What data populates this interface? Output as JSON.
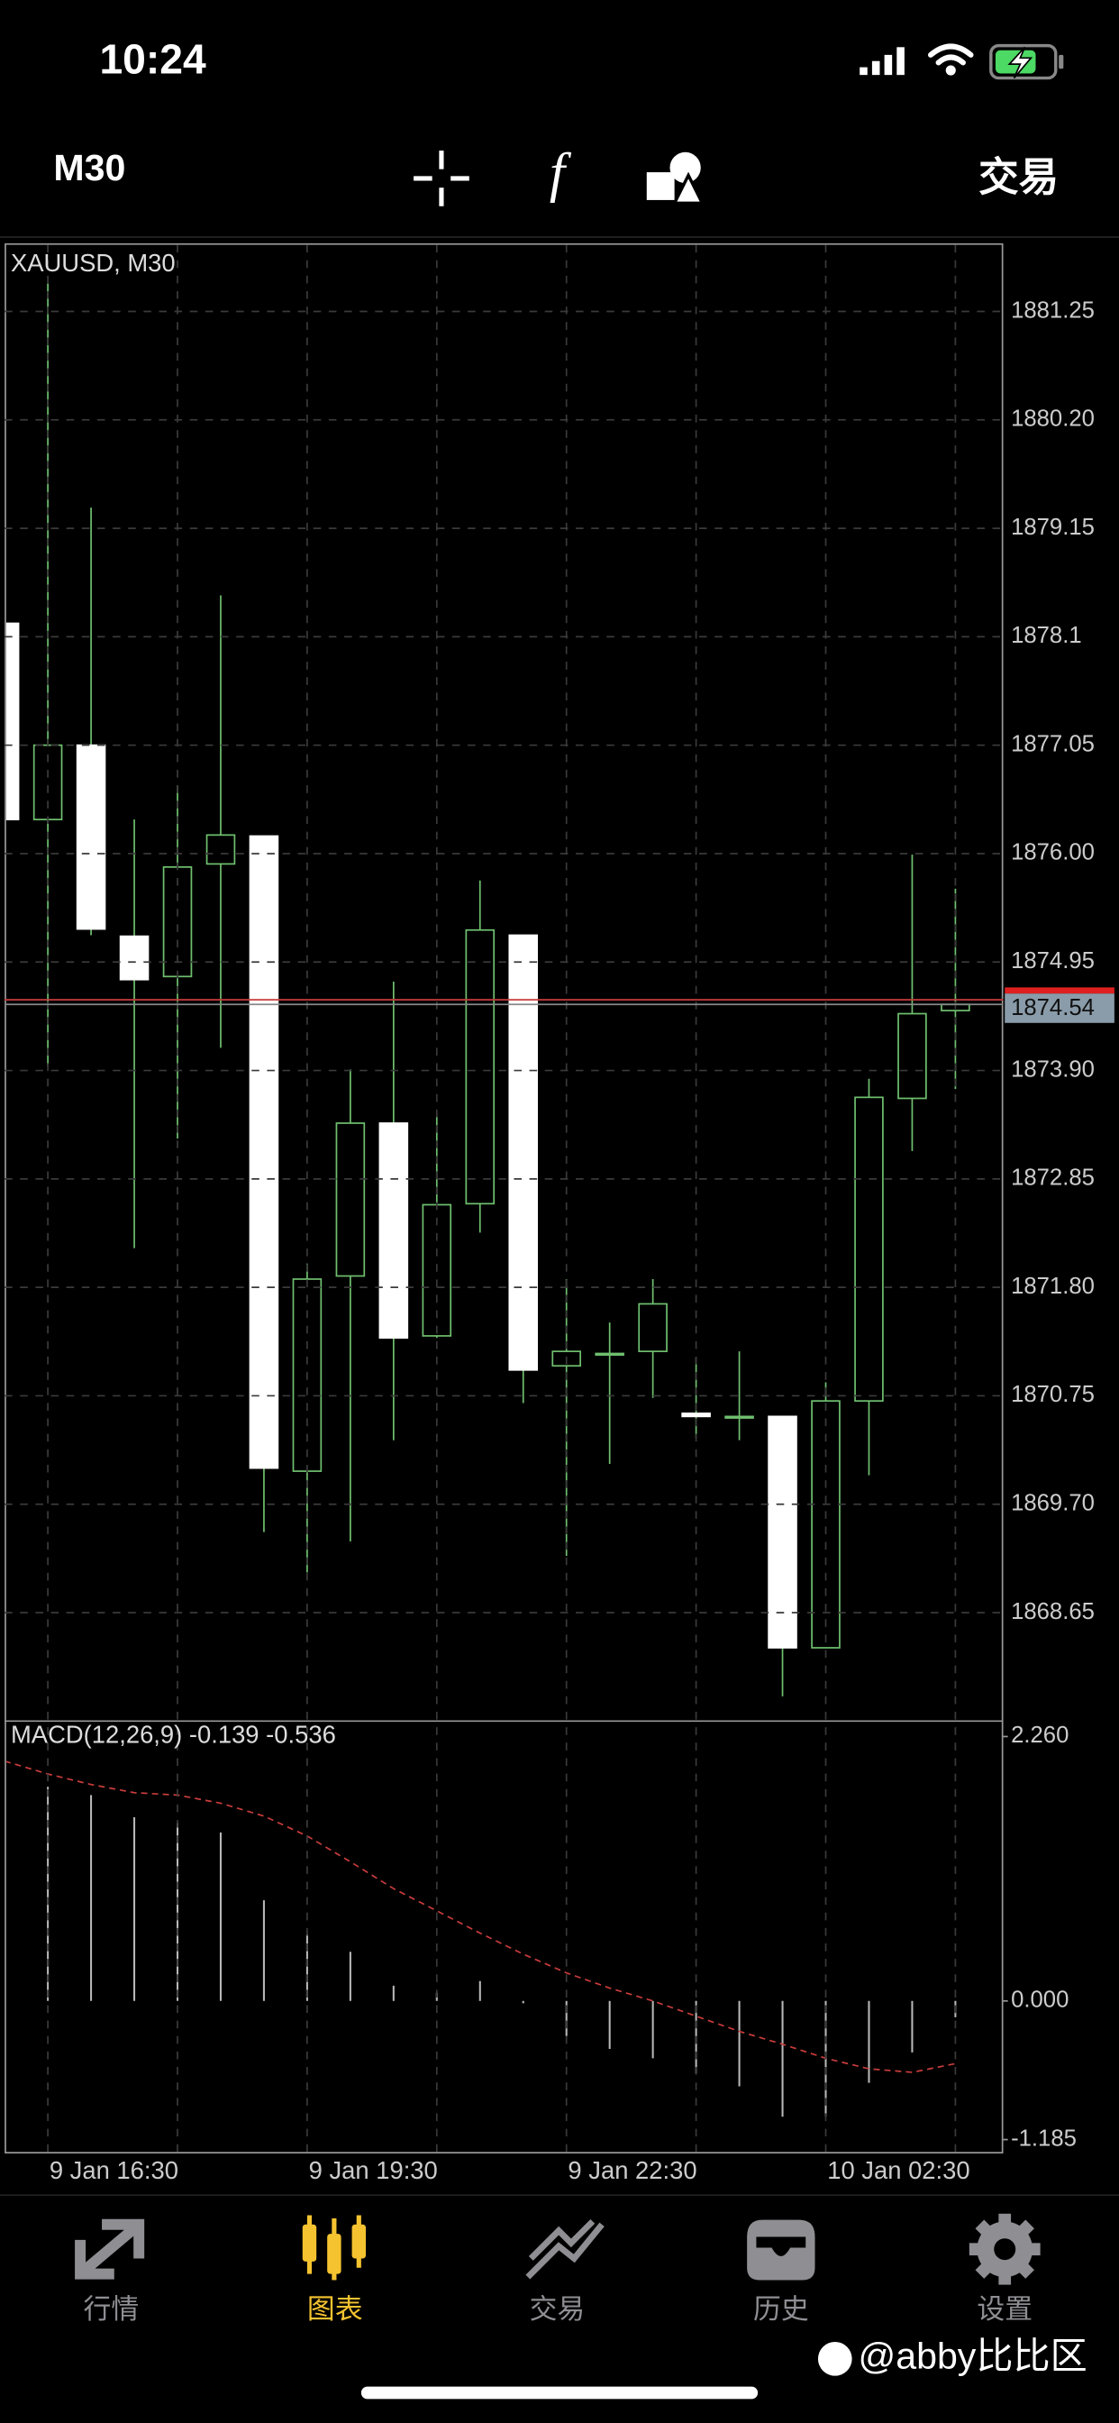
{
  "status_bar": {
    "time": "10:24"
  },
  "toolbar": {
    "timeframe": "M30",
    "indicator": "f",
    "trade": "交易"
  },
  "chart_data": [
    {
      "type": "candlestick",
      "title": "XAUUSD, M30",
      "categories": [
        null,
        "9 Jan 16:30",
        null,
        null,
        null,
        null,
        null,
        "9 Jan 19:30",
        null,
        null,
        null,
        null,
        null,
        "9 Jan 22:30",
        null,
        null,
        null,
        null,
        null,
        "10 Jan 02:30",
        null,
        null,
        null
      ],
      "open": [
        1878.23,
        1876.33,
        1877.05,
        1875.2,
        1874.81,
        1875.9,
        1876.17,
        1870.02,
        1871.91,
        1873.39,
        1871.33,
        1872.61,
        1875.21,
        1871.04,
        1871.15,
        1871.18,
        1870.58,
        1870.55,
        1870.55,
        1868.31,
        1870.7,
        1873.63,
        1874.48
      ],
      "high": [
        1878.23,
        1881.52,
        1879.35,
        1876.33,
        1876.66,
        1878.5,
        1876.17,
        1872.03,
        1873.91,
        1874.76,
        1873.46,
        1875.74,
        1875.21,
        1871.88,
        1871.46,
        1871.88,
        1871.12,
        1871.18,
        1870.55,
        1870.88,
        1873.82,
        1875.99,
        1875.66
      ],
      "low": [
        1876.33,
        1873.94,
        1875.21,
        1872.18,
        1873.24,
        1874.12,
        1869.43,
        1869.04,
        1869.34,
        1870.32,
        1871.31,
        1872.33,
        1870.68,
        1869.2,
        1870.09,
        1870.73,
        1870.34,
        1870.32,
        1867.84,
        1868.31,
        1869.98,
        1873.12,
        1873.72
      ],
      "close": [
        1876.33,
        1877.05,
        1875.27,
        1874.78,
        1875.87,
        1876.18,
        1870.05,
        1871.88,
        1873.39,
        1871.31,
        1872.6,
        1875.26,
        1871.0,
        1871.18,
        1871.16,
        1871.64,
        1870.55,
        1870.55,
        1868.31,
        1870.7,
        1873.64,
        1874.45,
        1874.54
      ],
      "up_color": "#6fbf6f",
      "down_color": "#ffffff",
      "ylim": [
        1867.6,
        1881.91
      ],
      "yticks": [
        1881.25,
        {
          "value": 1880.2,
          "label": "1880.20"
        },
        1879.15,
        1878.1,
        1877.05,
        {
          "value": 1876,
          "label": "1876.00"
        },
        1874.95,
        {
          "value": 1873.9,
          "label": "1873.90"
        },
        1872.85,
        {
          "value": 1871.8,
          "label": "1871.80"
        },
        1870.75,
        {
          "value": 1869.7,
          "label": "1869.70"
        },
        1868.65
      ],
      "current_price": 1874.54,
      "grid": true
    },
    {
      "type": "macd",
      "title": "MACD(12,26,9) -0.139 -0.536",
      "histogram": [
        2.0,
        1.83,
        1.76,
        1.57,
        1.52,
        1.44,
        0.86,
        0.57,
        0.42,
        0.13,
        0.07,
        0.17,
        -0.02,
        -0.3,
        -0.41,
        -0.49,
        -0.62,
        -0.73,
        -0.99,
        -0.99,
        -0.7,
        -0.44,
        -0.139
      ],
      "signal": [
        2.05,
        1.94,
        1.85,
        1.78,
        1.76,
        1.69,
        1.58,
        1.41,
        1.19,
        0.96,
        0.77,
        0.58,
        0.4,
        0.24,
        0.11,
        0.0,
        -0.13,
        -0.26,
        -0.37,
        -0.49,
        -0.58,
        -0.61,
        -0.536
      ],
      "histogram_color": "#b8b8b8",
      "signal_color": "#c83c3c",
      "ylim": [
        -1.185,
        2.26
      ],
      "yticks": [
        {
          "value": 2.26,
          "label": "2.260"
        },
        {
          "value": 0,
          "label": "0.000"
        },
        {
          "value": -1.185,
          "label": "-1.185"
        }
      ]
    }
  ],
  "tabs": [
    {
      "label": "行情"
    },
    {
      "label": "图表"
    },
    {
      "label": "交易"
    },
    {
      "label": "历史"
    },
    {
      "label": "设置"
    }
  ],
  "active_tab": 1,
  "watermark": "@abby比比区"
}
